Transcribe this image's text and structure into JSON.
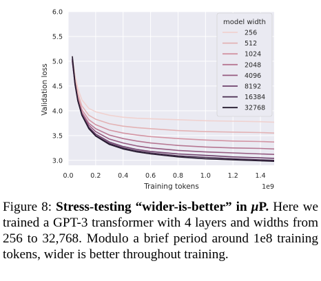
{
  "chart_data": {
    "type": "line",
    "xlabel": "Training tokens",
    "x_offset_label": "1e9",
    "ylabel": "Validation loss",
    "xlim": [
      0.0,
      1.5
    ],
    "ylim": [
      2.9,
      6.0
    ],
    "xticks": [
      "0.0",
      "0.2",
      "0.4",
      "0.6",
      "0.8",
      "1.0",
      "1.2",
      "1.4"
    ],
    "xtick_values": [
      0.0,
      0.2,
      0.4,
      0.6,
      0.8,
      1.0,
      1.2,
      1.4
    ],
    "yticks": [
      "3.0",
      "3.5",
      "4.0",
      "4.5",
      "5.0",
      "5.5",
      "6.0"
    ],
    "ytick_values": [
      3.0,
      3.5,
      4.0,
      4.5,
      5.0,
      5.5,
      6.0
    ],
    "grid": true,
    "legend_title": "model width",
    "legend_position": "top-right",
    "x": [
      0.03,
      0.05,
      0.07,
      0.1,
      0.15,
      0.2,
      0.3,
      0.4,
      0.5,
      0.6,
      0.8,
      1.0,
      1.2,
      1.4,
      1.5
    ],
    "series": [
      {
        "name": "256",
        "color": "#f0d2d0",
        "values": [
          5.1,
          4.7,
          4.45,
          4.22,
          4.05,
          3.98,
          3.91,
          3.87,
          3.85,
          3.84,
          3.82,
          3.8,
          3.79,
          3.78,
          3.77
        ]
      },
      {
        "name": "512",
        "color": "#e3b2b4",
        "values": [
          5.05,
          4.62,
          4.35,
          4.1,
          3.91,
          3.83,
          3.74,
          3.69,
          3.66,
          3.64,
          3.6,
          3.58,
          3.57,
          3.56,
          3.55
        ]
      },
      {
        "name": "1024",
        "color": "#d394a3",
        "values": [
          5.02,
          4.58,
          4.28,
          4.02,
          3.82,
          3.72,
          3.61,
          3.55,
          3.51,
          3.48,
          3.44,
          3.41,
          3.39,
          3.38,
          3.37
        ]
      },
      {
        "name": "2048",
        "color": "#b67692",
        "values": [
          5.0,
          4.54,
          4.24,
          3.97,
          3.75,
          3.64,
          3.51,
          3.44,
          3.39,
          3.35,
          3.3,
          3.27,
          3.25,
          3.24,
          3.23
        ]
      },
      {
        "name": "4096",
        "color": "#955a80",
        "values": [
          5.0,
          4.52,
          4.21,
          3.94,
          3.71,
          3.58,
          3.43,
          3.35,
          3.29,
          3.25,
          3.2,
          3.17,
          3.15,
          3.13,
          3.12
        ]
      },
      {
        "name": "8192",
        "color": "#6e406b",
        "values": [
          5.02,
          4.52,
          4.2,
          3.92,
          3.67,
          3.53,
          3.37,
          3.28,
          3.22,
          3.18,
          3.13,
          3.1,
          3.07,
          3.05,
          3.04
        ]
      },
      {
        "name": "16384",
        "color": "#472b4e",
        "values": [
          5.05,
          4.53,
          4.2,
          3.91,
          3.65,
          3.5,
          3.34,
          3.25,
          3.19,
          3.15,
          3.09,
          3.06,
          3.03,
          3.01,
          3.0
        ]
      },
      {
        "name": "32768",
        "color": "#241a2e",
        "values": [
          5.1,
          4.55,
          4.21,
          3.91,
          3.64,
          3.49,
          3.32,
          3.23,
          3.17,
          3.13,
          3.07,
          3.03,
          3.01,
          2.99,
          2.98
        ]
      }
    ]
  },
  "caption": {
    "prefix": "Figure 8: ",
    "bold": "Stress-testing “wider-is-better” in ",
    "bold_mu": "μ",
    "bold_end": "P.",
    "body": " Here we trained a GPT-3 transformer with 4 layers and widths from 256 to 32,768. Modulo a brief period around 1e8 training tokens, wider is better throughout training."
  }
}
